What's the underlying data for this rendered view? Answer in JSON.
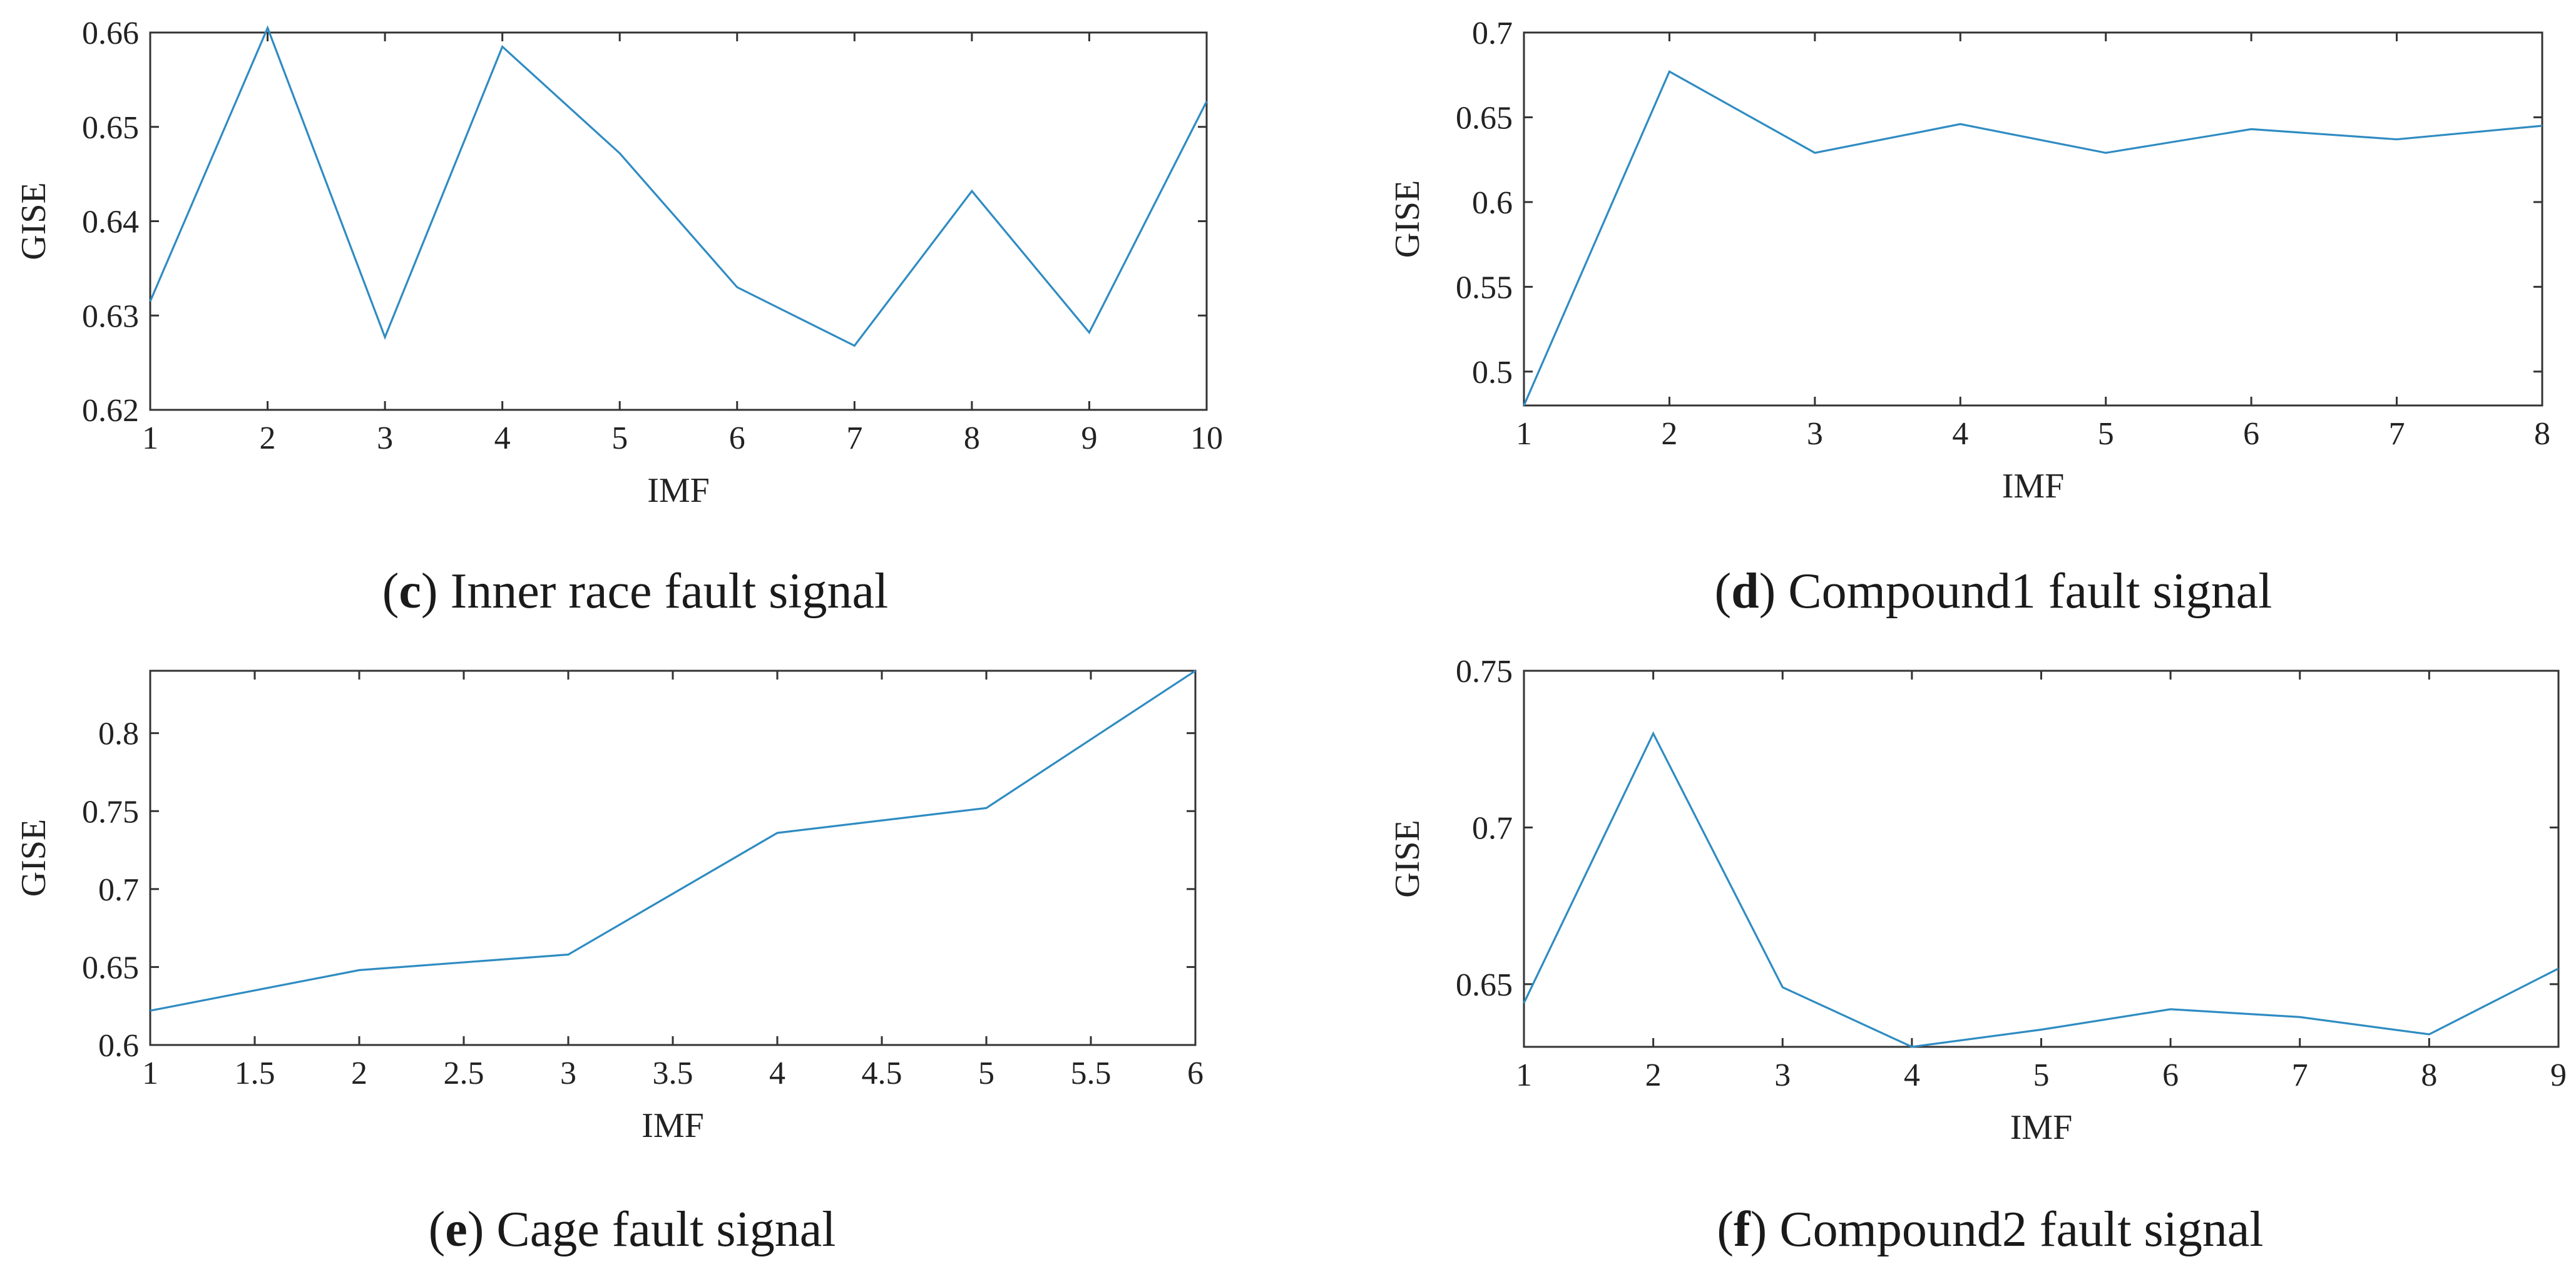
{
  "colors": {
    "series": "#2f8cc2",
    "axis": "#333333",
    "text": "#222222"
  },
  "chart_data": [
    {
      "id": "c",
      "type": "line",
      "caption_letter": "c",
      "caption_text": "Inner race fault signal",
      "xlabel": "IMF",
      "ylabel": "GISE",
      "xlim": [
        1,
        10
      ],
      "ylim": [
        0.62,
        0.66
      ],
      "xticks": [
        1,
        2,
        3,
        4,
        5,
        6,
        7,
        8,
        9,
        10
      ],
      "xtick_labels": [
        "1",
        "2",
        "3",
        "4",
        "5",
        "6",
        "7",
        "8",
        "9",
        "10"
      ],
      "yticks": [
        0.62,
        0.63,
        0.64,
        0.65,
        0.66
      ],
      "ytick_labels": [
        "0.62",
        "0.63",
        "0.64",
        "0.65",
        "0.66"
      ],
      "x": [
        1,
        2,
        3,
        4,
        5,
        6,
        7,
        8,
        9,
        10
      ],
      "y": [
        0.6315,
        0.6605,
        0.6277,
        0.6585,
        0.6472,
        0.633,
        0.6268,
        0.6432,
        0.6282,
        0.6527
      ]
    },
    {
      "id": "d",
      "type": "line",
      "caption_letter": "d",
      "caption_text": "Compound1 fault signal",
      "xlabel": "IMF",
      "ylabel": "GISE",
      "xlim": [
        1,
        8
      ],
      "ylim": [
        0.48,
        0.7
      ],
      "xticks": [
        1,
        2,
        3,
        4,
        5,
        6,
        7,
        8
      ],
      "xtick_labels": [
        "1",
        "2",
        "3",
        "4",
        "5",
        "6",
        "7",
        "8"
      ],
      "yticks": [
        0.5,
        0.55,
        0.6,
        0.65,
        0.7
      ],
      "ytick_labels": [
        "0.5",
        "0.55",
        "0.6",
        "0.65",
        "0.7"
      ],
      "x": [
        1,
        2,
        3,
        4,
        5,
        6,
        7,
        8
      ],
      "y": [
        0.48,
        0.677,
        0.629,
        0.646,
        0.629,
        0.643,
        0.637,
        0.645
      ]
    },
    {
      "id": "e",
      "type": "line",
      "caption_letter": "e",
      "caption_text": "Cage fault signal",
      "xlabel": "IMF",
      "ylabel": "GISE",
      "xlim": [
        1,
        6
      ],
      "ylim": [
        0.6,
        0.84
      ],
      "xticks": [
        1,
        1.5,
        2,
        2.5,
        3,
        3.5,
        4,
        4.5,
        5,
        5.5,
        6
      ],
      "xtick_labels": [
        "1",
        "1.5",
        "2",
        "2.5",
        "3",
        "3.5",
        "4",
        "4.5",
        "5",
        "5.5",
        "6"
      ],
      "yticks": [
        0.6,
        0.65,
        0.7,
        0.75,
        0.8
      ],
      "ytick_labels": [
        "0.6",
        "0.65",
        "0.7",
        "0.75",
        "0.8"
      ],
      "x": [
        1,
        2,
        3,
        4,
        5,
        6
      ],
      "y": [
        0.622,
        0.648,
        0.658,
        0.736,
        0.752,
        0.84
      ]
    },
    {
      "id": "f",
      "type": "line",
      "caption_letter": "f",
      "caption_text": "Compound2 fault signal",
      "xlabel": "IMF",
      "ylabel": "GISE",
      "xlim": [
        1,
        9
      ],
      "ylim": [
        0.63,
        0.75
      ],
      "xticks": [
        1,
        2,
        3,
        4,
        5,
        6,
        7,
        8,
        9
      ],
      "xtick_labels": [
        "1",
        "2",
        "3",
        "4",
        "5",
        "6",
        "7",
        "8",
        "9"
      ],
      "yticks": [
        0.65,
        0.7,
        0.75
      ],
      "ytick_labels": [
        "0.65",
        "0.7",
        "0.75"
      ],
      "x": [
        1,
        2,
        3,
        4,
        5,
        6,
        7,
        8,
        9
      ],
      "y": [
        0.644,
        0.73,
        0.649,
        0.63,
        0.6355,
        0.642,
        0.6395,
        0.634,
        0.655
      ]
    }
  ]
}
